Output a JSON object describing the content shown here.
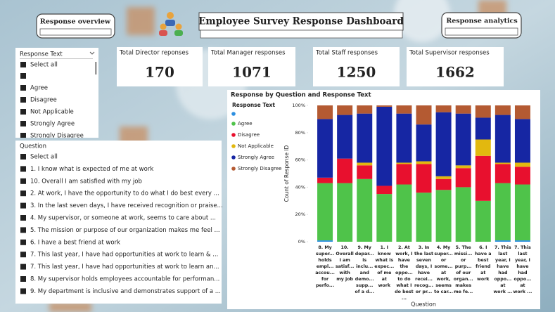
{
  "header": {
    "left_button": "Response overview",
    "title": "Employee Survey Response Dashboard",
    "right_button": "Response analytics"
  },
  "kpis": [
    {
      "label": "Total Director reponses",
      "value": 170
    },
    {
      "label": "Total Manager responses",
      "value": 1071
    },
    {
      "label": "Total Staff responses",
      "value": 1250
    },
    {
      "label": "Total Supervisor responses",
      "value": 1662
    }
  ],
  "response_slicer": {
    "title": "Response Text",
    "items": [
      "Select all",
      "Agree",
      "Disagree",
      "Not Applicable",
      "Strongly Agree",
      "Strongly Disagree"
    ]
  },
  "question_slicer": {
    "title": "Question",
    "items": [
      "Select all",
      "1. I know what is expected of me at work",
      "10. Overall I am satisfied with my job",
      "2. At work, I have the opportunity to do what I do best every ...",
      "3. In the last seven days, I have received recognition or praise...",
      "4. My supervisor, or someone at work, seems to care about ...",
      "5. The mission or purpose of our organization makes me feel ...",
      "6. I have a best friend at work",
      "7. This last year, I have had opportunities at work to learn & ...",
      "7. This last year, I have had opportunities at work to learn an...",
      "8. My supervisor holds employees accountable for performan...",
      "9. My department is inclusive and demonstrates support of a ..."
    ]
  },
  "chart": {
    "type": "stacked-bar-100",
    "title": "Response by Question and Response Text",
    "legend_title": "Response Text",
    "x_title": "Question",
    "y_title": "Count of Response ID",
    "ylim": [
      0,
      100
    ],
    "yticks": [
      {
        "value": 0,
        "label": "0%"
      },
      {
        "value": 20,
        "label": "20%"
      },
      {
        "value": 40,
        "label": "40%"
      },
      {
        "value": 60,
        "label": "60%"
      },
      {
        "value": 80,
        "label": "80%"
      },
      {
        "value": 100,
        "label": "100%"
      }
    ],
    "categories": [
      [
        "8. My",
        "super...",
        "holds",
        "empl...",
        "accou...",
        "for",
        "perfo..."
      ],
      [
        "10.",
        "Overall",
        "I am",
        "satisf...",
        "with",
        "my job"
      ],
      [
        "9. My",
        "depar...",
        "is",
        "inclu...",
        "and",
        "demo...",
        "supp...",
        "of a d..."
      ],
      [
        "1. I",
        "know",
        "what is",
        "expec...",
        "of me",
        "at",
        "work"
      ],
      [
        "2. At",
        "work, I",
        "have",
        "the",
        "oppo...",
        "to do",
        "what I",
        "do best",
        "..."
      ],
      [
        "3. In",
        "the last",
        "seven",
        "days, I",
        "have",
        "recei...",
        "recog...",
        "or pr..."
      ],
      [
        "4. My",
        "super...",
        "or",
        "some...",
        "at",
        "work,",
        "seems",
        "to car..."
      ],
      [
        "5. The",
        "missi...",
        "or",
        "purp...",
        "of our",
        "organ...",
        "makes",
        "me fe..."
      ],
      [
        "6. I",
        "have a",
        "best",
        "friend",
        "at",
        "work"
      ],
      [
        "7. This",
        "last",
        "year, I",
        "have",
        "had",
        "oppo...",
        "at",
        "work ..."
      ],
      [
        "7. This",
        "last",
        "year, I",
        "have",
        "had",
        "oppo...",
        "at",
        "work ..."
      ]
    ],
    "series": [
      {
        "color": "#2d8fe0",
        "values": [
          1,
          0,
          0,
          0,
          0,
          0,
          0,
          0,
          0,
          1,
          1
        ]
      },
      {
        "name": "Agree",
        "color": "#4fc34a",
        "values": [
          42,
          43,
          46,
          35,
          42,
          36,
          38,
          40,
          30,
          42,
          41
        ]
      },
      {
        "name": "Disagree",
        "color": "#e8102e",
        "values": [
          4,
          18,
          10,
          6,
          15,
          21,
          8,
          14,
          33,
          14,
          13
        ]
      },
      {
        "name": "Not Applicable",
        "color": "#e2b80f",
        "values": [
          0,
          0,
          2,
          0,
          1,
          2,
          2,
          2,
          12,
          1,
          3
        ]
      },
      {
        "name": "Strongly Agree",
        "color": "#1626a3",
        "values": [
          43,
          32,
          36,
          58,
          36,
          27,
          47,
          38,
          16,
          35,
          32
        ]
      },
      {
        "name": "Strongly Disagree",
        "color": "#b45a32",
        "values": [
          10,
          7,
          6,
          1,
          6,
          14,
          5,
          6,
          9,
          7,
          10
        ]
      }
    ]
  }
}
